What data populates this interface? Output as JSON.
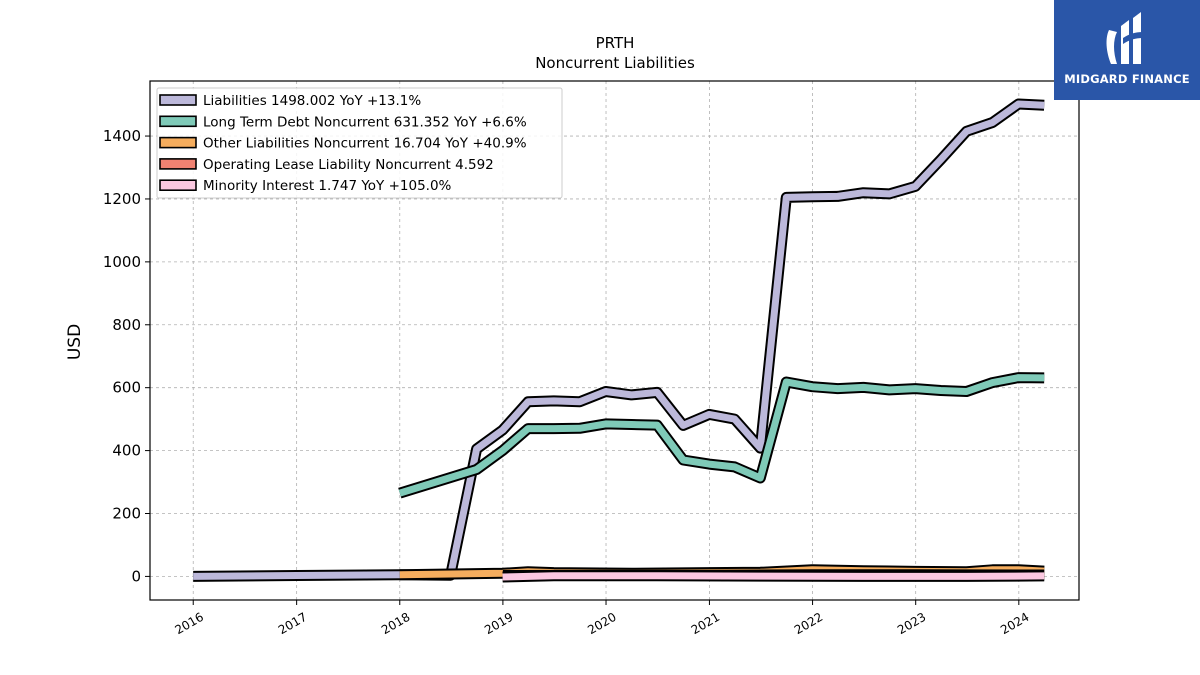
{
  "chart_data": {
    "type": "line",
    "title": "PRTH",
    "subtitle": "Noncurrent  Liabilities",
    "ylabel": "USD",
    "xlabel": "",
    "x_range": [
      "2015-08-01",
      "2024-08-01"
    ],
    "ylim": [
      -75,
      1575
    ],
    "x_ticks": [
      "2016",
      "2017",
      "2018",
      "2019",
      "2020",
      "2021",
      "2022",
      "2023",
      "2024"
    ],
    "y_ticks": [
      0,
      200,
      400,
      600,
      800,
      1000,
      1200,
      1400
    ],
    "grid": true,
    "legend_position": "top-left",
    "series": [
      {
        "name": "Liabilities",
        "legend_label": "Liabilities  1498.002 YoY +13.1%",
        "color": "#bcb8da",
        "points": [
          [
            "2016-01-01",
            0
          ],
          [
            "2017-01-01",
            3
          ],
          [
            "2018-01-01",
            5
          ],
          [
            "2018-06-30",
            4
          ],
          [
            "2018-09-30",
            405
          ],
          [
            "2018-12-31",
            465
          ],
          [
            "2019-03-31",
            555
          ],
          [
            "2019-06-30",
            558
          ],
          [
            "2019-09-30",
            555
          ],
          [
            "2019-12-31",
            588
          ],
          [
            "2020-03-31",
            577
          ],
          [
            "2020-06-30",
            585
          ],
          [
            "2020-09-30",
            480
          ],
          [
            "2020-12-31",
            515
          ],
          [
            "2021-03-31",
            500
          ],
          [
            "2021-06-30",
            408
          ],
          [
            "2021-09-30",
            1205
          ],
          [
            "2021-12-31",
            1207
          ],
          [
            "2022-03-31",
            1208
          ],
          [
            "2022-06-30",
            1220
          ],
          [
            "2022-09-30",
            1216
          ],
          [
            "2022-12-31",
            1240
          ],
          [
            "2023-03-31",
            1325
          ],
          [
            "2023-06-30",
            1415
          ],
          [
            "2023-09-30",
            1443
          ],
          [
            "2023-12-31",
            1502
          ],
          [
            "2024-03-31",
            1498
          ]
        ]
      },
      {
        "name": "Long Term Debt Noncurrent",
        "legend_label": "Long Term Debt Noncurrent  631.352 YoY +6.6%",
        "color": "#7fcab8",
        "points": [
          [
            "2018-01-01",
            265
          ],
          [
            "2018-09-30",
            340
          ],
          [
            "2018-12-31",
            400
          ],
          [
            "2019-03-31",
            470
          ],
          [
            "2019-06-30",
            470
          ],
          [
            "2019-09-30",
            471
          ],
          [
            "2019-12-31",
            485
          ],
          [
            "2020-03-31",
            483
          ],
          [
            "2020-06-30",
            481
          ],
          [
            "2020-09-30",
            370
          ],
          [
            "2020-12-31",
            357
          ],
          [
            "2021-03-31",
            348
          ],
          [
            "2021-06-30",
            313
          ],
          [
            "2021-09-30",
            618
          ],
          [
            "2021-12-31",
            603
          ],
          [
            "2022-03-31",
            597
          ],
          [
            "2022-06-30",
            601
          ],
          [
            "2022-09-30",
            593
          ],
          [
            "2022-12-31",
            597
          ],
          [
            "2023-03-31",
            591
          ],
          [
            "2023-06-30",
            588
          ],
          [
            "2023-09-30",
            616
          ],
          [
            "2023-12-31",
            632
          ],
          [
            "2024-03-31",
            631
          ]
        ]
      },
      {
        "name": "Other Liabilities Noncurrent",
        "legend_label": "Other Liabilities Noncurrent  16.704 YoY +40.9%",
        "color": "#f5ad5e",
        "points": [
          [
            "2018-01-01",
            5
          ],
          [
            "2018-12-31",
            10
          ],
          [
            "2019-03-31",
            15
          ],
          [
            "2019-06-30",
            12
          ],
          [
            "2020-03-31",
            10
          ],
          [
            "2020-12-31",
            12
          ],
          [
            "2021-06-30",
            13
          ],
          [
            "2021-12-31",
            21
          ],
          [
            "2022-06-30",
            18
          ],
          [
            "2022-12-31",
            16
          ],
          [
            "2023-06-30",
            15
          ],
          [
            "2023-09-30",
            21
          ],
          [
            "2023-12-31",
            21
          ],
          [
            "2024-03-31",
            17
          ]
        ]
      },
      {
        "name": "Operating Lease Liability Noncurrent",
        "legend_label": "Operating Lease Liability Noncurrent  4.592",
        "color": "#f08272",
        "points": [
          [
            "2019-01-01",
            3
          ],
          [
            "2020-01-01",
            4
          ],
          [
            "2021-01-01",
            4
          ],
          [
            "2022-01-01",
            5
          ],
          [
            "2023-01-01",
            5
          ],
          [
            "2024-03-31",
            4.6
          ]
        ]
      },
      {
        "name": "Minority Interest",
        "legend_label": "Minority Interest  1.747 YoY +105.0%",
        "color": "#fbc8e0",
        "points": [
          [
            "2018-12-31",
            -2
          ],
          [
            "2019-06-30",
            2
          ],
          [
            "2020-06-30",
            2
          ],
          [
            "2021-06-30",
            1
          ],
          [
            "2022-06-30",
            0
          ],
          [
            "2023-06-30",
            0
          ],
          [
            "2024-03-31",
            1.7
          ]
        ]
      }
    ]
  },
  "logo": {
    "text": "MIDGARD FINANCE"
  }
}
